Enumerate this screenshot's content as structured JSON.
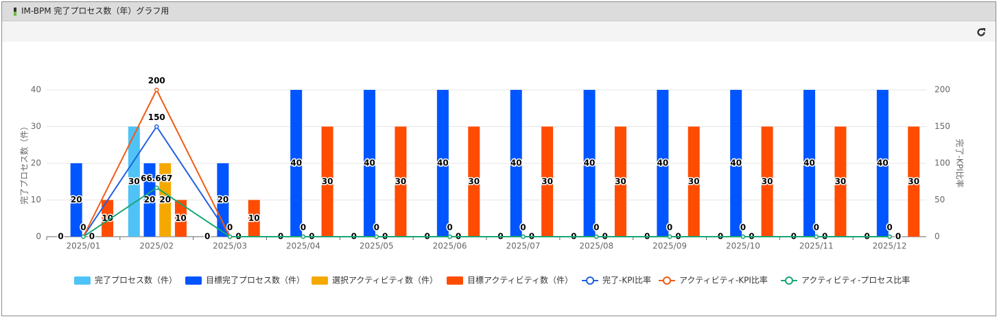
{
  "panel": {
    "title": "IM-BPM 完了プロセス数（年）グラフ用"
  },
  "chart_data": {
    "type": "bar",
    "categories": [
      "2025/01",
      "2025/02",
      "2025/03",
      "2025/04",
      "2025/05",
      "2025/06",
      "2025/07",
      "2025/08",
      "2025/09",
      "2025/10",
      "2025/11",
      "2025/12"
    ],
    "ylabel": "完了プロセス数（件）",
    "y2label": "完了-KPI比率",
    "ylim": [
      0,
      40
    ],
    "yticks": [
      0,
      10,
      20,
      30,
      40
    ],
    "y2lim": [
      0,
      200
    ],
    "y2ticks": [
      0,
      50,
      100,
      150,
      200
    ],
    "grid": true,
    "legend": "bottom",
    "series": [
      {
        "name": "完了プロセス数（件）",
        "color": "#4fc3f7",
        "values": [
          0,
          30,
          0,
          0,
          0,
          0,
          0,
          0,
          0,
          0,
          0,
          0
        ]
      },
      {
        "name": "目標完了プロセス数（件）",
        "color": "#0055ff",
        "values": [
          20,
          20,
          20,
          40,
          40,
          40,
          40,
          40,
          40,
          40,
          40,
          40
        ]
      },
      {
        "name": "選択アクティビティ数（件）",
        "color": "#f5a800",
        "values": [
          0,
          20,
          0,
          0,
          0,
          0,
          0,
          0,
          0,
          0,
          0,
          0
        ]
      },
      {
        "name": "目標アクティビティ数（件）",
        "color": "#ff4c00",
        "values": [
          10,
          10,
          10,
          30,
          30,
          30,
          30,
          30,
          30,
          30,
          30,
          30
        ]
      },
      {
        "name": "完了-KPI比率",
        "color": "#1f5fe0",
        "type": "line",
        "axis": "y2",
        "values": [
          0,
          150,
          0,
          0,
          0,
          0,
          0,
          0,
          0,
          0,
          0,
          0
        ]
      },
      {
        "name": "アクティビティ-KPI比率",
        "color": "#f05a14",
        "type": "line",
        "axis": "y2",
        "values": [
          0,
          200,
          0,
          0,
          0,
          0,
          0,
          0,
          0,
          0,
          0,
          0
        ]
      },
      {
        "name": "アクティビティ-プロセス比率",
        "color": "#17a673",
        "type": "line",
        "axis": "y2",
        "values": [
          0,
          66.667,
          0,
          0,
          0,
          0,
          0,
          0,
          0,
          0,
          0,
          0
        ]
      }
    ]
  }
}
